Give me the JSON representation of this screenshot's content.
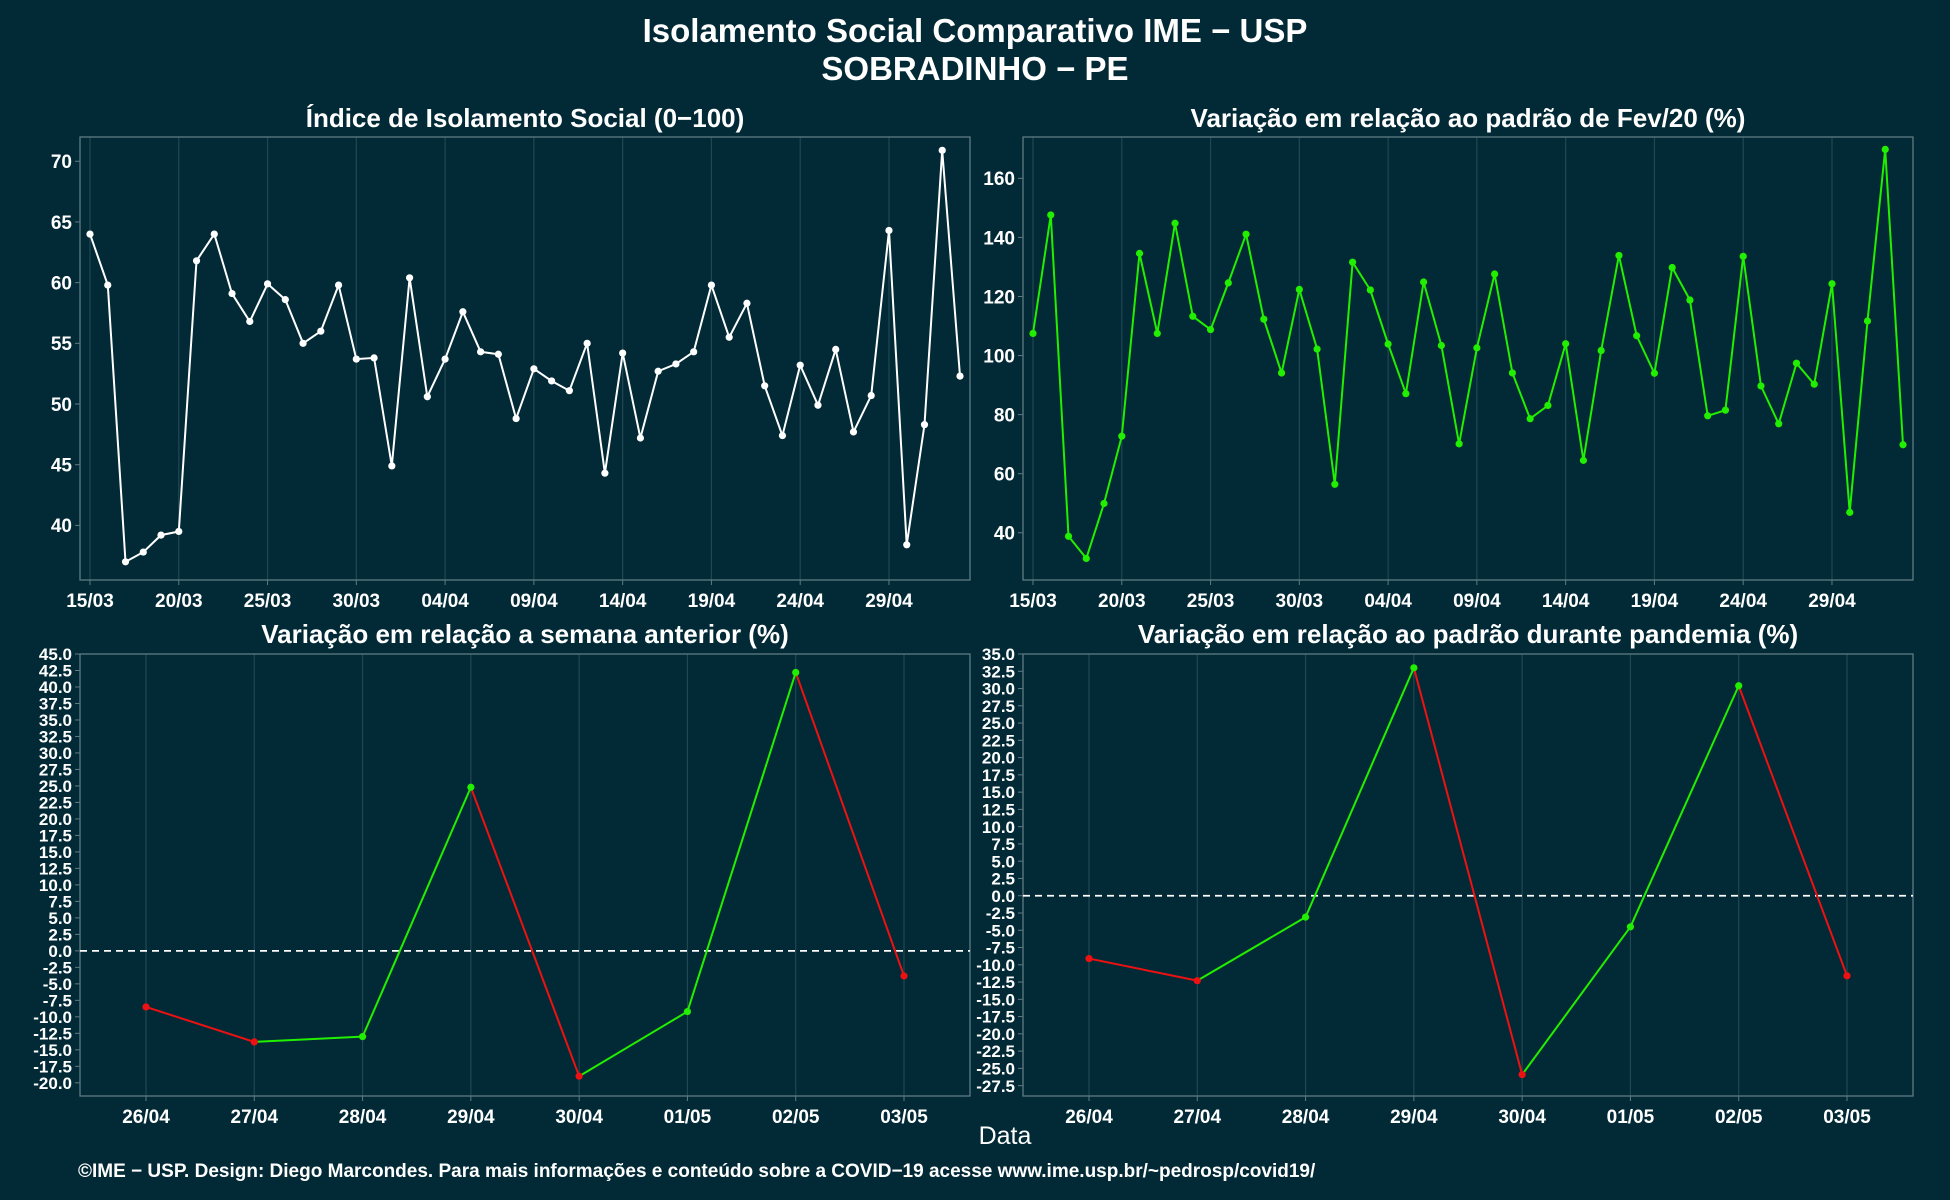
{
  "page": {
    "title_line1": "Isolamento Social Comparativo IME − USP",
    "title_line2": "SOBRADINHO − PE",
    "shared_xlabel": "Data",
    "footer": "©IME − USP. Design: Diego Marcondes. Para mais informações e conteúdo sobre a COVID−19 acesse www.ime.usp.br/~pedrosp/covid19/"
  },
  "colors": {
    "background": "#022a36",
    "text": "#ffffff",
    "panel_border": "#5f7a83",
    "grid": "#1f4853",
    "line_white": "#ffffff",
    "line_green": "#22ee00",
    "line_red": "#ee1111",
    "zero_line": "#ffffff"
  },
  "chart_data": [
    {
      "id": "isolamento",
      "type": "line",
      "title": "Índice de Isolamento Social (0−100)",
      "color": "#ffffff",
      "x_ticks": [
        "15/03",
        "20/03",
        "25/03",
        "30/03",
        "04/04",
        "09/04",
        "14/04",
        "19/04",
        "24/04",
        "29/04"
      ],
      "dates": [
        "15/03",
        "16/03",
        "17/03",
        "18/03",
        "19/03",
        "20/03",
        "21/03",
        "22/03",
        "23/03",
        "24/03",
        "25/03",
        "26/03",
        "27/03",
        "28/03",
        "29/03",
        "30/03",
        "31/03",
        "01/04",
        "02/04",
        "03/04",
        "04/04",
        "05/04",
        "06/04",
        "07/04",
        "08/04",
        "09/04",
        "10/04",
        "11/04",
        "12/04",
        "13/04",
        "14/04",
        "15/04",
        "16/04",
        "17/04",
        "18/04",
        "19/04",
        "20/04",
        "21/04",
        "22/04",
        "23/04",
        "24/04",
        "25/04",
        "26/04",
        "27/04",
        "28/04",
        "29/04",
        "30/04",
        "01/05",
        "02/05",
        "03/05"
      ],
      "values": [
        64.0,
        59.8,
        37.0,
        37.8,
        39.2,
        39.5,
        61.8,
        64.0,
        59.1,
        56.8,
        59.9,
        58.6,
        55.0,
        56.0,
        59.8,
        53.7,
        53.8,
        44.9,
        60.4,
        50.6,
        53.7,
        57.6,
        54.3,
        54.1,
        48.8,
        52.9,
        51.9,
        51.1,
        55.0,
        44.3,
        54.2,
        47.2,
        52.7,
        53.3,
        54.3,
        59.8,
        55.5,
        58.3,
        51.5,
        47.4,
        53.2,
        49.9,
        54.5,
        47.7,
        50.7,
        64.3,
        38.4,
        48.3,
        70.9,
        52.3
      ],
      "y_ticks": [
        40,
        45,
        50,
        55,
        60,
        65,
        70
      ],
      "ylim": [
        35.5,
        72
      ]
    },
    {
      "id": "fev20",
      "type": "line",
      "title": "Variação em relação ao padrão de Fev/20 (%)",
      "color": "#22ee00",
      "x_ticks": [
        "15/03",
        "20/03",
        "25/03",
        "30/03",
        "04/04",
        "09/04",
        "14/04",
        "19/04",
        "24/04",
        "29/04"
      ],
      "dates": [
        "15/03",
        "16/03",
        "17/03",
        "18/03",
        "19/03",
        "20/03",
        "21/03",
        "22/03",
        "23/03",
        "24/03",
        "25/03",
        "26/03",
        "27/03",
        "28/03",
        "29/03",
        "30/03",
        "31/03",
        "01/04",
        "02/04",
        "03/04",
        "04/04",
        "05/04",
        "06/04",
        "07/04",
        "08/04",
        "09/04",
        "10/04",
        "11/04",
        "12/04",
        "13/04",
        "14/04",
        "15/04",
        "16/04",
        "17/04",
        "18/04",
        "19/04",
        "20/04",
        "21/04",
        "22/04",
        "23/04",
        "24/04",
        "25/04",
        "26/04",
        "27/04",
        "28/04",
        "29/04",
        "30/04",
        "01/05",
        "02/05",
        "03/05"
      ],
      "values": [
        107.5,
        147.6,
        38.8,
        31.3,
        49.9,
        72.7,
        134.6,
        107.5,
        144.8,
        113.3,
        108.8,
        124.6,
        141.1,
        112.3,
        94.1,
        122.4,
        102.2,
        56.4,
        131.6,
        122.2,
        103.9,
        87.1,
        124.9,
        103.4,
        70.1,
        102.6,
        127.6,
        94.1,
        78.6,
        83.1,
        104.0,
        64.5,
        101.7,
        133.9,
        106.7,
        94.0,
        129.8,
        118.8,
        79.6,
        81.5,
        133.6,
        89.7,
        76.9,
        97.4,
        90.3,
        124.3,
        46.9,
        111.7,
        169.8,
        69.8
      ],
      "y_ticks": [
        40,
        60,
        80,
        100,
        120,
        140,
        160
      ],
      "ylim": [
        24,
        174
      ]
    },
    {
      "id": "semana",
      "type": "line",
      "title": "Variação em relação a semana anterior (%)",
      "color_up": "#22ee00",
      "color_down": "#ee1111",
      "categories": [
        "26/04",
        "27/04",
        "28/04",
        "29/04",
        "30/04",
        "01/05",
        "02/05",
        "03/05"
      ],
      "values": [
        -8.5,
        -13.8,
        -13.0,
        24.8,
        -19.0,
        -9.2,
        42.2,
        -3.8
      ],
      "y_ticks": [
        -20.0,
        -17.5,
        -15.0,
        -12.5,
        -10.0,
        -7.5,
        -5.0,
        -2.5,
        0.0,
        2.5,
        5.0,
        7.5,
        10.0,
        12.5,
        15.0,
        17.5,
        20.0,
        22.5,
        25.0,
        27.5,
        30.0,
        32.5,
        35.0,
        37.5,
        40.0,
        42.5,
        45.0
      ],
      "ylim": [
        -22,
        45
      ],
      "zero_line": true
    },
    {
      "id": "pandemia",
      "type": "line",
      "title": "Variação em relação ao padrão durante pandemia (%)",
      "color_up": "#22ee00",
      "color_down": "#ee1111",
      "categories": [
        "26/04",
        "27/04",
        "28/04",
        "29/04",
        "30/04",
        "01/05",
        "02/05",
        "03/05"
      ],
      "values": [
        -9.1,
        -12.3,
        -3.1,
        33.0,
        -25.9,
        -4.5,
        30.4,
        -11.6
      ],
      "y_ticks": [
        -27.5,
        -25.0,
        -22.5,
        -20.0,
        -17.5,
        -15.0,
        -12.5,
        -10.0,
        -7.5,
        -5.0,
        -2.5,
        0.0,
        2.5,
        5.0,
        7.5,
        10.0,
        12.5,
        15.0,
        17.5,
        20.0,
        22.5,
        25.0,
        27.5,
        30.0,
        32.5,
        35.0
      ],
      "ylim": [
        -29,
        35
      ],
      "zero_line": true
    }
  ]
}
